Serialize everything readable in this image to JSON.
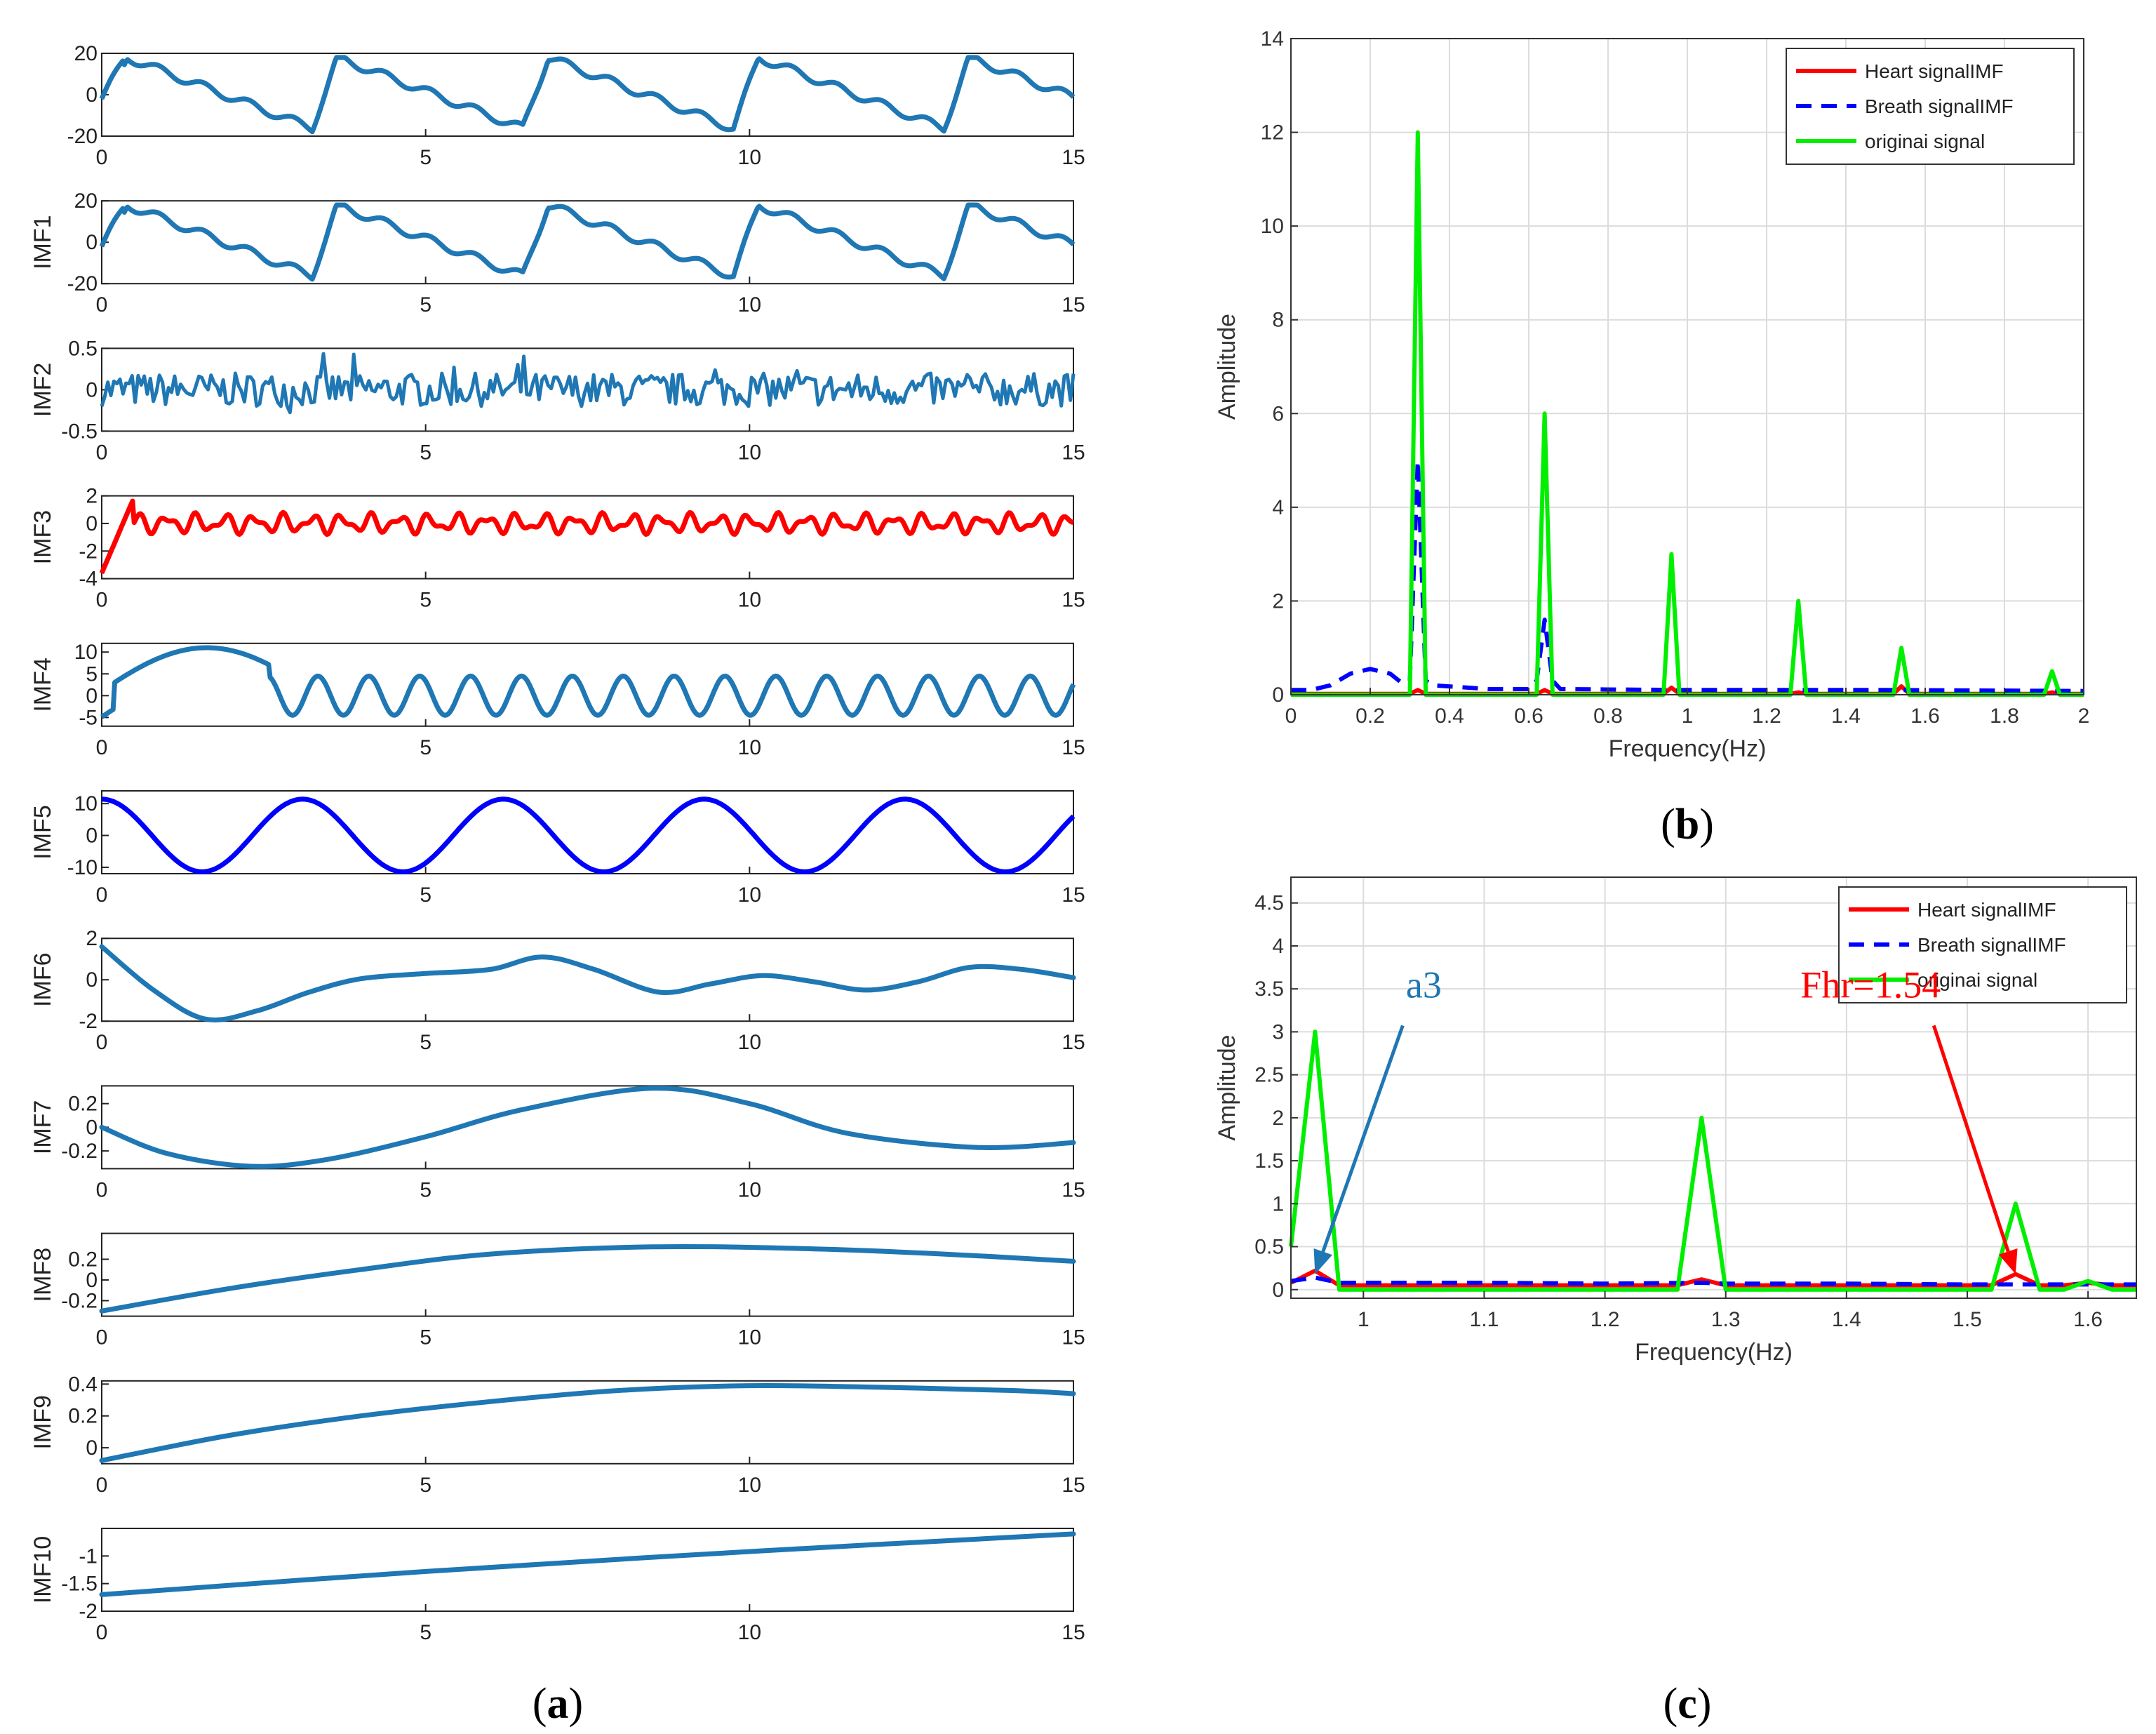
{
  "figure_labels": {
    "a": {
      "open": "(",
      "letter": "a",
      "close": ")"
    },
    "b": {
      "open": "(",
      "letter": "b",
      "close": ")"
    },
    "c": {
      "open": "(",
      "letter": "c",
      "close": ")"
    }
  },
  "colors": {
    "imf_default": "#1f77b4",
    "imf3": "#ff0000",
    "imf5": "#0000ff",
    "heart": "#ff0000",
    "breath": "#0000ff",
    "original": "#00ee00",
    "arrow_a3": "#1f77b4",
    "arrow_fhr": "#ff0000"
  },
  "chart_data": [
    {
      "id": "a",
      "type": "line",
      "title": "",
      "xlabel": "",
      "xlim": [
        0,
        15
      ],
      "xticks": [
        0,
        5,
        10,
        15
      ],
      "panels": [
        {
          "ylabel": "",
          "ylim": [
            -20,
            20
          ],
          "yticks": [
            -20,
            0,
            20
          ],
          "color": "imf_default",
          "kind": "signal",
          "amp": 18,
          "period": 3.25
        },
        {
          "ylabel": "IMF1",
          "ylim": [
            -20,
            20
          ],
          "yticks": [
            -20,
            0,
            20
          ],
          "color": "imf_default",
          "kind": "signal",
          "amp": 18,
          "period": 3.25
        },
        {
          "ylabel": "IMF2",
          "ylim": [
            -0.5,
            0.5
          ],
          "yticks": [
            -0.5,
            0,
            0.5
          ],
          "color": "imf_default",
          "kind": "noise",
          "amp": 0.2
        },
        {
          "ylabel": "IMF3",
          "ylim": [
            -4,
            2
          ],
          "yticks": [
            -4,
            -2,
            0,
            2
          ],
          "color": "imf3",
          "kind": "osc3"
        },
        {
          "ylabel": "IMF4",
          "ylim": [
            -7,
            12
          ],
          "yticks": [
            -5,
            0,
            5,
            10
          ],
          "color": "imf_default",
          "kind": "osc4"
        },
        {
          "ylabel": "IMF5",
          "ylim": [
            -12,
            14
          ],
          "yticks": [
            -10,
            0,
            10
          ],
          "color": "imf5",
          "kind": "osc5"
        },
        {
          "ylabel": "IMF6",
          "ylim": [
            -2,
            2
          ],
          "yticks": [
            -2,
            0,
            2
          ],
          "color": "imf_default",
          "kind": "points",
          "x": [
            0,
            0.8,
            1.6,
            2.4,
            3.2,
            4,
            5,
            6,
            6.8,
            7.6,
            8.6,
            9.4,
            10.2,
            11,
            11.8,
            12.6,
            13.4,
            14.2,
            15
          ],
          "y": [
            1.6,
            -0.5,
            -1.9,
            -1.5,
            -0.6,
            0.05,
            0.3,
            0.5,
            1.1,
            0.5,
            -0.6,
            -0.2,
            0.2,
            -0.1,
            -0.5,
            -0.1,
            0.6,
            0.5,
            0.1
          ]
        },
        {
          "ylabel": "IMF7",
          "ylim": [
            -0.35,
            0.35
          ],
          "yticks": [
            -0.2,
            0,
            0.2
          ],
          "color": "imf_default",
          "kind": "points",
          "x": [
            0,
            1,
            2.3,
            3.5,
            5,
            6.5,
            8.5,
            10,
            11.5,
            13.5,
            15
          ],
          "y": [
            0,
            -0.22,
            -0.33,
            -0.27,
            -0.08,
            0.15,
            0.33,
            0.2,
            -0.05,
            -0.17,
            -0.13
          ]
        },
        {
          "ylabel": "IMF8",
          "ylim": [
            -0.35,
            0.45
          ],
          "yticks": [
            -0.2,
            0,
            0.2
          ],
          "color": "imf_default",
          "kind": "points",
          "x": [
            0,
            2,
            4,
            6,
            8.5,
            11,
            13,
            15
          ],
          "y": [
            -0.3,
            -0.08,
            0.1,
            0.25,
            0.32,
            0.3,
            0.25,
            0.18
          ]
        },
        {
          "ylabel": "IMF9",
          "ylim": [
            -0.1,
            0.42
          ],
          "yticks": [
            0,
            0.2,
            0.4
          ],
          "color": "imf_default",
          "kind": "points",
          "x": [
            0,
            2,
            4,
            6,
            8,
            10,
            12,
            14,
            15
          ],
          "y": [
            -0.08,
            0.08,
            0.2,
            0.29,
            0.36,
            0.39,
            0.38,
            0.36,
            0.34
          ]
        },
        {
          "ylabel": "IMF10",
          "ylim": [
            -2,
            -0.5
          ],
          "yticks": [
            -2,
            -1.5,
            -1
          ],
          "color": "imf_default",
          "kind": "points",
          "x": [
            0,
            5,
            10,
            15
          ],
          "y": [
            -1.7,
            -1.28,
            -0.92,
            -0.6
          ]
        }
      ]
    },
    {
      "id": "b",
      "type": "line",
      "xlabel": "Frequency(Hz)",
      "ylabel": "Amplitude",
      "xlim": [
        0,
        2
      ],
      "ylim": [
        0,
        14
      ],
      "xticks": [
        0,
        0.2,
        0.4,
        0.6,
        0.8,
        1,
        1.2,
        1.4,
        1.6,
        1.8,
        2
      ],
      "yticks": [
        0,
        2,
        4,
        6,
        8,
        10,
        12,
        14
      ],
      "grid": true,
      "legend_position": "top-right",
      "series": [
        {
          "name": "Heart signalIMF",
          "color": "heart",
          "style": "solid",
          "x": [
            0,
            0.3,
            0.32,
            0.34,
            0.62,
            0.64,
            0.66,
            0.94,
            0.96,
            0.98,
            1.26,
            1.28,
            1.3,
            1.52,
            1.54,
            1.56,
            1.9,
            1.92,
            1.94,
            2
          ],
          "y": [
            0.02,
            0.02,
            0.1,
            0.02,
            0.02,
            0.1,
            0.02,
            0.02,
            0.15,
            0.02,
            0.02,
            0.05,
            0.02,
            0.02,
            0.18,
            0.02,
            0.02,
            0.05,
            0.02,
            0.02
          ]
        },
        {
          "name": "Breath signalIMF",
          "color": "breath",
          "style": "dashed",
          "x": [
            0,
            0.05,
            0.1,
            0.15,
            0.2,
            0.25,
            0.28,
            0.3,
            0.32,
            0.34,
            0.36,
            0.5,
            0.6,
            0.62,
            0.64,
            0.66,
            0.68,
            1,
            1.5,
            2
          ],
          "y": [
            0.1,
            0.1,
            0.2,
            0.45,
            0.55,
            0.45,
            0.25,
            0.3,
            5,
            0.3,
            0.2,
            0.12,
            0.12,
            0.3,
            1.6,
            0.3,
            0.12,
            0.1,
            0.1,
            0.08
          ]
        },
        {
          "name": "originai signal",
          "color": "original",
          "style": "solid",
          "x": [
            0,
            0.3,
            0.32,
            0.34,
            0.62,
            0.64,
            0.66,
            0.94,
            0.96,
            0.98,
            1.26,
            1.28,
            1.3,
            1.52,
            1.54,
            1.56,
            1.9,
            1.92,
            1.94,
            2
          ],
          "y": [
            0,
            0,
            12,
            0,
            0,
            6,
            0,
            0,
            3,
            0,
            0,
            2,
            0,
            0,
            1,
            0,
            0,
            0.5,
            0,
            0
          ]
        }
      ]
    },
    {
      "id": "c",
      "type": "line",
      "xlabel": "Frequency(Hz)",
      "ylabel": "Amplitude",
      "xlim": [
        0.94,
        1.64
      ],
      "ylim": [
        -0.1,
        4.8
      ],
      "xticks": [
        1,
        1.1,
        1.2,
        1.3,
        1.4,
        1.5,
        1.6
      ],
      "yticks": [
        0,
        0.5,
        1,
        1.5,
        2,
        2.5,
        3,
        3.5,
        4,
        4.5
      ],
      "grid": true,
      "legend_position": "top-right",
      "annotations": [
        {
          "text": "a3",
          "color": "arrow_a3",
          "text_x": 1.05,
          "text_y": 3.4,
          "tip_x": 0.96,
          "tip_y": 0.18
        },
        {
          "text": "Fhr=1.54",
          "color": "arrow_fhr",
          "text_x": 1.42,
          "text_y": 3.4,
          "tip_x": 1.54,
          "tip_y": 0.18
        }
      ],
      "series": [
        {
          "name": "Heart signalIMF",
          "color": "heart",
          "style": "solid",
          "x": [
            0.94,
            0.96,
            0.98,
            1.26,
            1.28,
            1.3,
            1.52,
            1.54,
            1.56,
            1.58,
            1.6,
            1.62,
            1.64
          ],
          "y": [
            0.08,
            0.22,
            0.05,
            0.05,
            0.12,
            0.05,
            0.05,
            0.18,
            0.05,
            0.05,
            0.08,
            0.05,
            0.05
          ]
        },
        {
          "name": "Breath signalIMF",
          "color": "breath",
          "style": "dashed",
          "x": [
            0.94,
            0.96,
            0.98,
            1.1,
            1.2,
            1.28,
            1.3,
            1.4,
            1.5,
            1.56,
            1.6,
            1.64
          ],
          "y": [
            0.1,
            0.14,
            0.08,
            0.08,
            0.07,
            0.08,
            0.07,
            0.07,
            0.06,
            0.06,
            0.06,
            0.06
          ]
        },
        {
          "name": "originai signal",
          "color": "original",
          "style": "solid",
          "x": [
            0.94,
            0.96,
            0.98,
            1.26,
            1.28,
            1.3,
            1.52,
            1.54,
            1.56,
            1.58,
            1.6,
            1.62,
            1.64
          ],
          "y": [
            0.5,
            3,
            0,
            0,
            2,
            0,
            0,
            1,
            0,
            0,
            0.1,
            0,
            0
          ]
        }
      ]
    }
  ]
}
